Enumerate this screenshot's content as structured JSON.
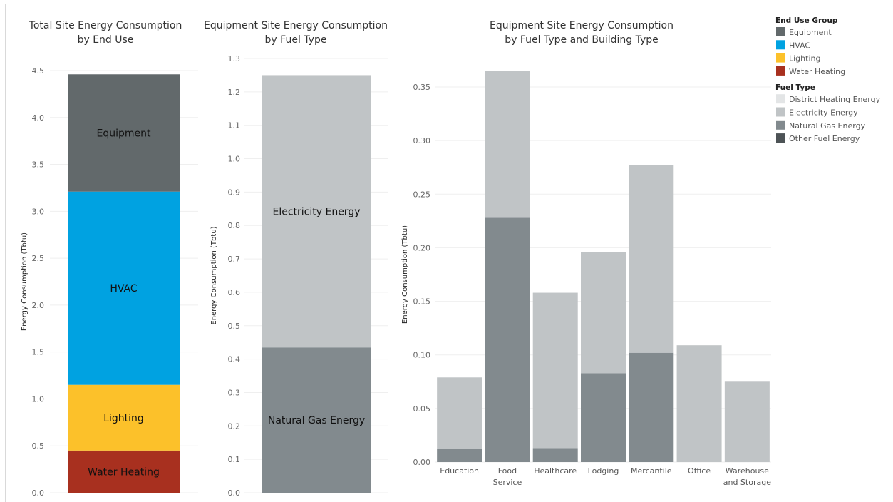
{
  "chart_data": [
    {
      "type": "bar",
      "stacked": true,
      "title": [
        "Total Site Energy Consumption",
        "by End Use"
      ],
      "ylabel": "Energy Consumption (Tbtu)",
      "ylim": [
        0,
        4.5
      ],
      "yticks": [
        "0.0",
        "0.5",
        "1.0",
        "1.5",
        "2.0",
        "2.5",
        "3.0",
        "3.5",
        "4.0",
        "4.5"
      ],
      "grid": true,
      "series": [
        {
          "name": "Water Heating",
          "value": 0.45,
          "color": "#a8301f"
        },
        {
          "name": "Lighting",
          "value": 0.7,
          "color": "#fcc12a"
        },
        {
          "name": "HVAC",
          "value": 2.06,
          "color": "#00a2e1"
        },
        {
          "name": "Equipment",
          "value": 1.25,
          "color": "#62696b"
        }
      ]
    },
    {
      "type": "bar",
      "stacked": true,
      "title": [
        "Equipment Site Energy Consumption",
        "by Fuel Type"
      ],
      "ylabel": "Energy Consumption (Tbtu)",
      "ylim": [
        0,
        1.3
      ],
      "yticks": [
        "0.0",
        "0.1",
        "0.2",
        "0.3",
        "0.4",
        "0.5",
        "0.6",
        "0.7",
        "0.8",
        "0.9",
        "1.0",
        "1.1",
        "1.2",
        "1.3"
      ],
      "grid": true,
      "series": [
        {
          "name": "Natural Gas Energy",
          "value": 0.435,
          "color": "#828a8e"
        },
        {
          "name": "Electricity Energy",
          "value": 0.815,
          "color": "#c0c4c6"
        }
      ]
    },
    {
      "type": "bar",
      "stacked": true,
      "title": [
        "Equipment Site Energy Consumption",
        "by Fuel Type and Building Type"
      ],
      "ylabel": "Energy Consumption (Tbtu)",
      "ylim": [
        0,
        0.35
      ],
      "yticks": [
        "0.00",
        "0.05",
        "0.10",
        "0.15",
        "0.20",
        "0.25",
        "0.30",
        "0.35"
      ],
      "grid": true,
      "categories": [
        [
          "Education"
        ],
        [
          "Food",
          "Service"
        ],
        [
          "Healthcare"
        ],
        [
          "Lodging"
        ],
        [
          "Mercantile"
        ],
        [
          "Office"
        ],
        [
          "Warehouse",
          "and Storage"
        ]
      ],
      "series": [
        {
          "name": "Natural Gas Energy",
          "color": "#828a8e",
          "values": [
            0.012,
            0.228,
            0.013,
            0.083,
            0.102,
            0,
            0
          ]
        },
        {
          "name": "Electricity Energy",
          "color": "#c0c4c6",
          "values": [
            0.067,
            0.137,
            0.145,
            0.113,
            0.175,
            0.109,
            0.075
          ]
        }
      ]
    }
  ],
  "legend": {
    "groups": [
      {
        "title": "End Use Group",
        "items": [
          {
            "label": "Equipment",
            "color": "#62696b"
          },
          {
            "label": "HVAC",
            "color": "#00a2e1"
          },
          {
            "label": "Lighting",
            "color": "#fcc12a"
          },
          {
            "label": "Water Heating",
            "color": "#a8301f"
          }
        ]
      },
      {
        "title": "Fuel Type",
        "items": [
          {
            "label": "District Heating Energy",
            "color": "#e3e5e6"
          },
          {
            "label": "Electricity Energy",
            "color": "#c0c4c6"
          },
          {
            "label": "Natural Gas Energy",
            "color": "#828a8e"
          },
          {
            "label": "Other Fuel Energy",
            "color": "#4d5356"
          }
        ]
      }
    ]
  }
}
